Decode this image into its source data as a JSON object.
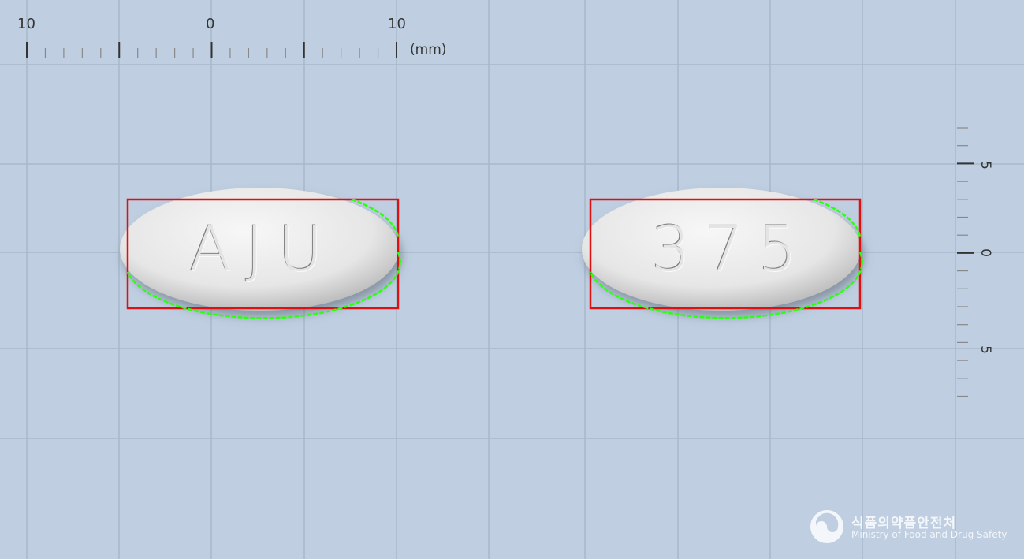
{
  "scale": {
    "unit_label": "(mm)",
    "h_ticks": [
      "10",
      "0",
      "10"
    ],
    "v_ticks": [
      "5",
      "0",
      "5"
    ]
  },
  "pills": [
    {
      "imprint": "AJU"
    },
    {
      "imprint": "375"
    }
  ],
  "logo": {
    "korean": "식품의약품안전처",
    "english": "Ministry of Food and Drug Safety"
  },
  "colors": {
    "background": "#bfcfe1",
    "grid": "#a7b9cc",
    "bbox": "#e01010",
    "contour": "#2cff10",
    "pill": "#e9e9e9"
  }
}
